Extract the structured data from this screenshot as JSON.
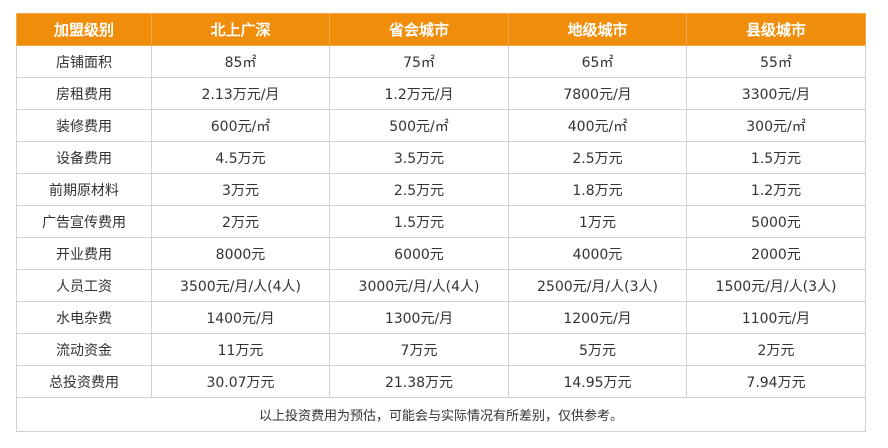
{
  "table": {
    "headers": [
      "加盟级别",
      "北上广深",
      "省会城市",
      "地级城市",
      "县级城市"
    ],
    "rows": [
      [
        "店铺面积",
        "85㎡",
        "75㎡",
        "65㎡",
        "55㎡"
      ],
      [
        "房租费用",
        "2.13万元/月",
        "1.2万元/月",
        "7800元/月",
        "3300元/月"
      ],
      [
        "装修费用",
        "600元/㎡",
        "500元/㎡",
        "400元/㎡",
        "300元/㎡"
      ],
      [
        "设备费用",
        "4.5万元",
        "3.5万元",
        "2.5万元",
        "1.5万元"
      ],
      [
        "前期原材料",
        "3万元",
        "2.5万元",
        "1.8万元",
        "1.2万元"
      ],
      [
        "广告宣传费用",
        "2万元",
        "1.5万元",
        "1万元",
        "5000元"
      ],
      [
        "开业费用",
        "8000元",
        "6000元",
        "4000元",
        "2000元"
      ],
      [
        "人员工资",
        "3500元/月/人(4人)",
        "3000元/月/人(4人)",
        "2500元/月/人(3人)",
        "1500元/月/人(3人)"
      ],
      [
        "水电杂费",
        "1400元/月",
        "1300元/月",
        "1200元/月",
        "1100元/月"
      ],
      [
        "流动资金",
        "11万元",
        "7万元",
        "5万元",
        "2万元"
      ],
      [
        "总投资费用",
        "30.07万元",
        "21.38万元",
        "14.95万元",
        "7.94万元"
      ]
    ],
    "note": "以上投资费用为预估，可能会与实际情况有所差别，仅供参考。"
  },
  "colors": {
    "header_bg": "#f08e0b",
    "header_text": "#ffffff",
    "border": "#d0d0d0",
    "body_text": "#333333"
  }
}
